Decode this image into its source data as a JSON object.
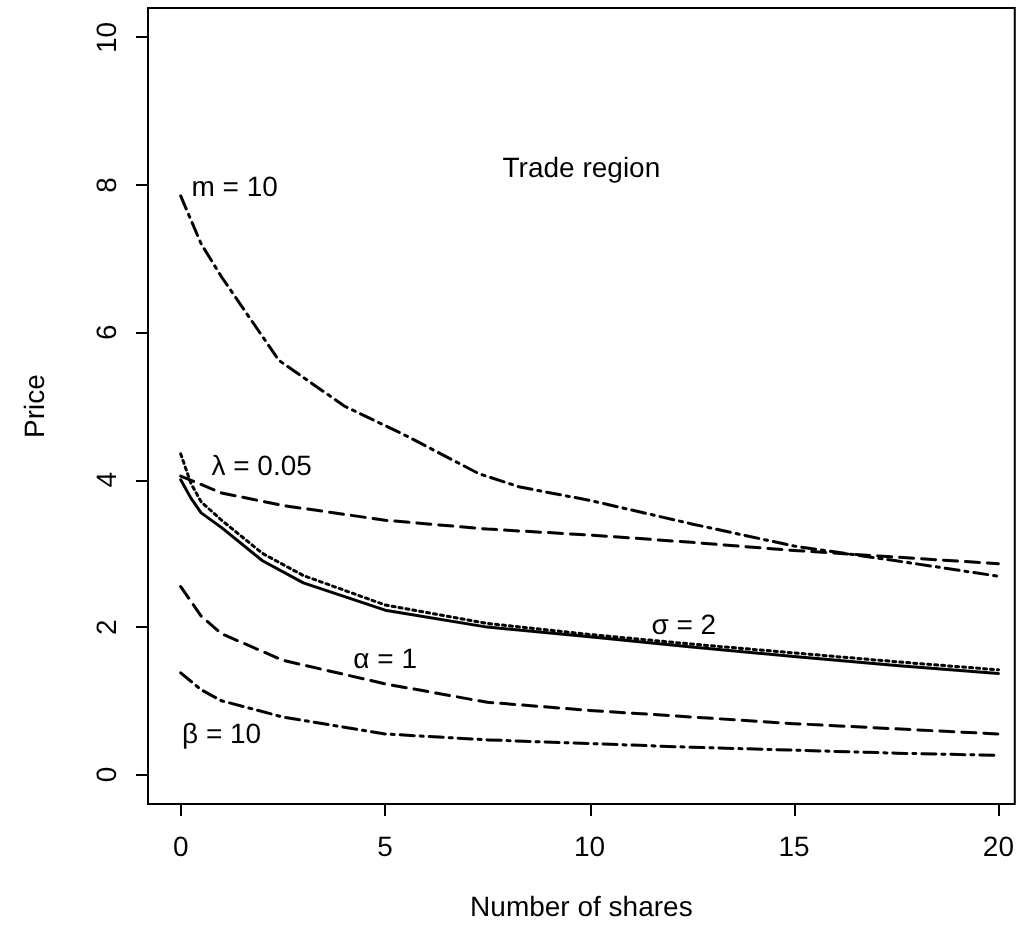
{
  "chart_data": {
    "type": "line",
    "xlabel": "Number of shares",
    "ylabel": "Price",
    "xlim": [
      -0.8,
      20.4
    ],
    "ylim": [
      -0.4,
      10.4
    ],
    "xticks": [
      0,
      5,
      10,
      15,
      20
    ],
    "yticks": [
      0,
      2,
      4,
      6,
      8,
      10
    ],
    "grid": false,
    "annotations": [
      "Trade region"
    ],
    "series": [
      {
        "name": "m = 10",
        "color": "#000000",
        "line_style": "dashdot",
        "x": [
          0,
          0.5,
          1,
          2.4,
          4,
          5.5,
          7.3,
          8.3,
          10,
          12.5,
          15,
          17.5,
          20
        ],
        "values": [
          7.85,
          7.2,
          6.75,
          5.62,
          5.0,
          4.6,
          4.08,
          3.9,
          3.72,
          3.4,
          3.1,
          2.9,
          2.69
        ]
      },
      {
        "name": "λ = 0.05",
        "color": "#000000",
        "line_style": "dashed",
        "x": [
          0,
          1,
          2.5,
          5,
          7.5,
          10,
          12.5,
          15,
          17.5,
          20
        ],
        "values": [
          4.05,
          3.82,
          3.65,
          3.45,
          3.33,
          3.25,
          3.15,
          3.04,
          2.95,
          2.86
        ]
      },
      {
        "name": "σ = 2",
        "color": "#000000",
        "line_style": "dotted",
        "x": [
          0,
          0.25,
          0.5,
          1,
          2,
          3,
          5,
          7.5,
          10,
          12.5,
          15,
          17.5,
          20
        ],
        "values": [
          4.35,
          3.95,
          3.7,
          3.45,
          3.0,
          2.7,
          2.3,
          2.05,
          1.9,
          1.77,
          1.65,
          1.53,
          1.42
        ]
      },
      {
        "color": "#000000",
        "line_style": "solid",
        "x": [
          0,
          0.25,
          0.5,
          1,
          2,
          3,
          5,
          7.5,
          10,
          12.5,
          15,
          17.5,
          20
        ],
        "values": [
          4.0,
          3.75,
          3.55,
          3.35,
          2.9,
          2.6,
          2.23,
          2.0,
          1.87,
          1.73,
          1.6,
          1.48,
          1.37
        ]
      },
      {
        "name": "α = 1",
        "color": "#000000",
        "line_style": "dashed",
        "x": [
          0,
          0.5,
          1,
          2.5,
          5,
          7.5,
          10,
          12.5,
          15,
          17.5,
          20
        ],
        "values": [
          2.55,
          2.15,
          1.91,
          1.55,
          1.23,
          0.98,
          0.87,
          0.78,
          0.69,
          0.62,
          0.55
        ]
      },
      {
        "name": "β = 10",
        "color": "#000000",
        "line_style": "dashdot",
        "x": [
          0,
          0.5,
          1,
          2.5,
          5,
          7.5,
          10,
          12.5,
          15,
          17.5,
          20
        ],
        "values": [
          1.38,
          1.15,
          1.0,
          0.78,
          0.55,
          0.47,
          0.42,
          0.37,
          0.33,
          0.29,
          0.26
        ]
      }
    ]
  }
}
